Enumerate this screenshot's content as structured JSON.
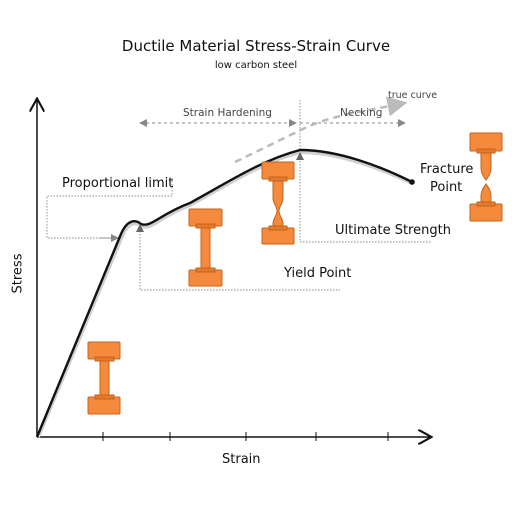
{
  "title": "Ductile Material Stress-Strain Curve",
  "subtitle": "low carbon steel",
  "axes": {
    "x_label": "Strain",
    "y_label": "Stress"
  },
  "labels": {
    "proportional_limit": "Proportional limit",
    "yield_point": "Yield Point",
    "ultimate_strength": "Ultimate Strength",
    "fracture_point_line1": "Fracture",
    "fracture_point_line2": "Point",
    "strain_hardening": "Strain Hardening",
    "necking": "Necking",
    "true_curve": "true curve"
  },
  "colors": {
    "curve": "#111111",
    "true_curve": "#bdbdbd",
    "specimen": "#f58a3c",
    "specimen_edge": "#c4631c",
    "guide": "#777777"
  },
  "specimen_icons": [
    "specimen-unloaded",
    "specimen-yield",
    "specimen-necking",
    "specimen-fractured"
  ]
}
